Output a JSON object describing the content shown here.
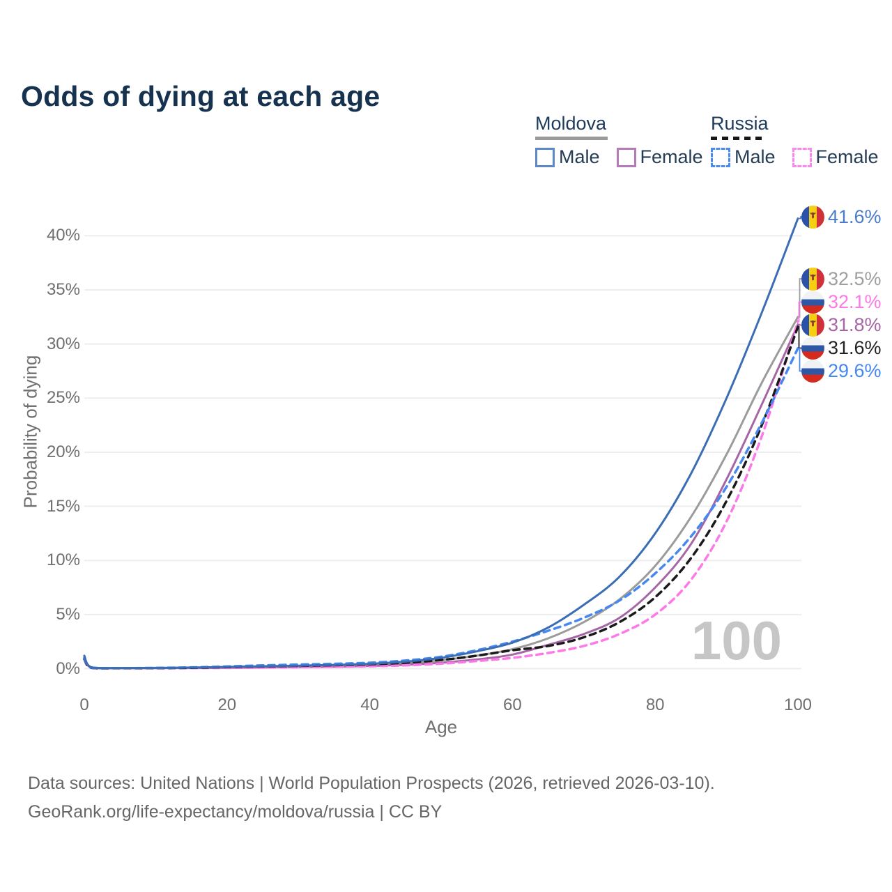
{
  "title": "Odds of dying at each age",
  "watermark": "100",
  "legend": {
    "groups": [
      {
        "name": "Moldova",
        "underline_style": "solid",
        "underline_color": "#9a9a9a",
        "items": [
          {
            "label": "Male",
            "box_color": "#5c88c5",
            "box_style": "solid"
          },
          {
            "label": "Female",
            "box_color": "#b77ab8",
            "box_style": "solid"
          }
        ]
      },
      {
        "name": "Russia",
        "underline_style": "dashed",
        "underline_color": "#161616",
        "items": [
          {
            "label": "Male",
            "box_color": "#4b8bf0",
            "box_style": "dashed"
          },
          {
            "label": "Female",
            "box_color": "#fc87ef",
            "box_style": "dashed"
          }
        ]
      }
    ]
  },
  "chart_data": {
    "type": "line",
    "title": "Odds of dying at each age",
    "xlabel": "Age",
    "ylabel": "Probability of dying",
    "x_ticks": [
      0,
      20,
      40,
      60,
      80,
      100
    ],
    "y_tick_labels": [
      "0%",
      "5%",
      "10%",
      "15%",
      "20%",
      "25%",
      "30%",
      "35%",
      "40%"
    ],
    "xlim": [
      0,
      100
    ],
    "ylim_pct": [
      0,
      43
    ],
    "grid": "horizontal",
    "legend_position": "top-right",
    "ages": [
      0,
      1,
      5,
      10,
      15,
      20,
      25,
      30,
      35,
      40,
      45,
      50,
      55,
      60,
      65,
      70,
      75,
      80,
      85,
      90,
      95,
      100
    ],
    "series": [
      {
        "name": "Moldova Both sexes",
        "country": "moldova",
        "color": "#9b9b9b",
        "dash": null,
        "values": [
          1.1,
          0.1,
          0.05,
          0.06,
          0.08,
          0.13,
          0.18,
          0.22,
          0.28,
          0.36,
          0.5,
          0.78,
          1.2,
          1.8,
          2.8,
          4.3,
          6.4,
          9.5,
          14.0,
          19.8,
          26.5,
          32.5
        ]
      },
      {
        "name": "Moldova Female",
        "country": "moldova",
        "color": "#a666a6",
        "dash": null,
        "values": [
          1.0,
          0.09,
          0.04,
          0.05,
          0.06,
          0.08,
          0.11,
          0.14,
          0.18,
          0.25,
          0.36,
          0.55,
          0.85,
          1.3,
          2.2,
          3.2,
          4.7,
          7.5,
          11.5,
          17.5,
          24.5,
          31.8
        ]
      },
      {
        "name": "Russia Female",
        "country": "russia",
        "color": "#fb7ae8",
        "dash": "9 7",
        "values": [
          0.85,
          0.07,
          0.03,
          0.04,
          0.05,
          0.07,
          0.1,
          0.13,
          0.17,
          0.22,
          0.3,
          0.46,
          0.7,
          1.0,
          1.45,
          2.1,
          3.2,
          5.0,
          8.2,
          13.6,
          21.6,
          32.1
        ]
      },
      {
        "name": "Russia Both sexes",
        "country": "russia",
        "color": "#1a1a1a",
        "dash": "9 7",
        "values": [
          0.9,
          0.08,
          0.04,
          0.05,
          0.08,
          0.14,
          0.2,
          0.26,
          0.32,
          0.4,
          0.55,
          0.8,
          1.2,
          1.7,
          2.1,
          2.9,
          4.3,
          6.6,
          10.2,
          15.5,
          22.6,
          31.6
        ]
      },
      {
        "name": "Russia Male",
        "country": "russia",
        "color": "#4688f2",
        "dash": "9 7",
        "values": [
          1.0,
          0.1,
          0.05,
          0.07,
          0.12,
          0.2,
          0.3,
          0.38,
          0.45,
          0.55,
          0.75,
          1.1,
          1.7,
          2.5,
          3.5,
          4.7,
          6.3,
          8.8,
          12.2,
          16.8,
          22.8,
          29.6
        ]
      },
      {
        "name": "Moldova Male",
        "country": "moldova",
        "color": "#3b6db4",
        "dash": null,
        "values": [
          1.2,
          0.12,
          0.06,
          0.07,
          0.1,
          0.16,
          0.22,
          0.28,
          0.35,
          0.45,
          0.65,
          1.0,
          1.6,
          2.4,
          3.8,
          5.9,
          8.5,
          12.5,
          18.0,
          25.0,
          33.0,
          41.6
        ]
      }
    ],
    "end_labels": [
      {
        "value": "41.6%",
        "value_pct": 41.6,
        "country": "moldova",
        "series": "Moldova Male",
        "color": "#4a7cc9"
      },
      {
        "value": "32.5%",
        "value_pct": 32.5,
        "country": "moldova",
        "series": "Moldova Both sexes",
        "color": "#9e9e9e"
      },
      {
        "value": "32.1%",
        "value_pct": 32.1,
        "country": "russia",
        "series": "Russia Female",
        "color": "#fb7ae8"
      },
      {
        "value": "31.8%",
        "value_pct": 31.8,
        "country": "moldova",
        "series": "Moldova Female",
        "color": "#a666a6"
      },
      {
        "value": "31.6%",
        "value_pct": 31.6,
        "country": "russia",
        "series": "Russia Both sexes",
        "color": "#222222"
      },
      {
        "value": "29.6%",
        "value_pct": 29.6,
        "country": "russia",
        "series": "Russia Male",
        "color": "#4688f2"
      }
    ]
  },
  "source": {
    "line1": "Data sources: United Nations | World Population Prospects (2026, retrieved 2026-03-10).",
    "line2": "GeoRank.org/life-expectancy/moldova/russia | CC BY"
  }
}
